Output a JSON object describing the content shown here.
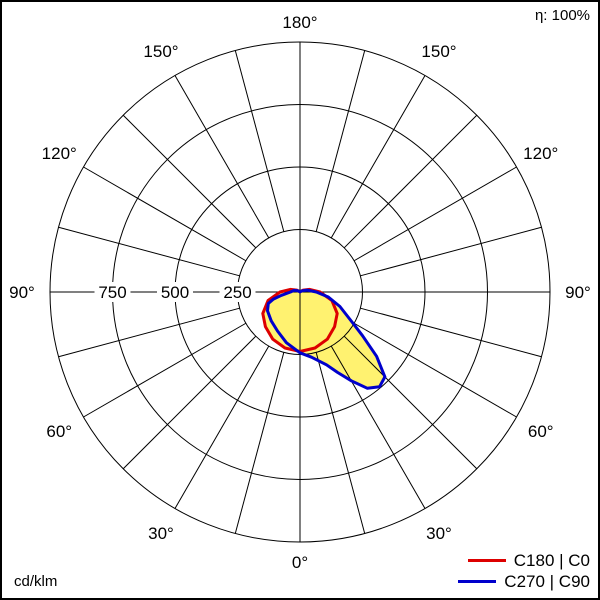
{
  "efficiency_label": "η: 100%",
  "unit_label": "cd/klm",
  "chart_data": {
    "type": "polar",
    "angle_unit": "deg",
    "angle_labels": [
      {
        "angle": 0,
        "text": "0°"
      },
      {
        "angle": 30,
        "text": "30°"
      },
      {
        "angle": 60,
        "text": "60°"
      },
      {
        "angle": 90,
        "text": "90°"
      },
      {
        "angle": 120,
        "text": "120°"
      },
      {
        "angle": 150,
        "text": "150°"
      },
      {
        "angle": 180,
        "text": "180°"
      }
    ],
    "radial_ticks": [
      250,
      500,
      750
    ],
    "radial_labels": [
      "250",
      "500",
      "750"
    ],
    "rmax": 1000,
    "grid": true,
    "legend_position": "bottom-right",
    "fill_color": "#fff270",
    "series": [
      {
        "name": "C180 | C0",
        "color": "#dd0000",
        "points": [
          [
            0,
            238
          ],
          [
            15,
            232
          ],
          [
            30,
            218
          ],
          [
            45,
            196
          ],
          [
            60,
            172
          ],
          [
            75,
            132
          ],
          [
            90,
            80
          ],
          [
            105,
            40
          ],
          [
            120,
            15
          ],
          [
            135,
            3
          ],
          [
            180,
            0
          ],
          [
            -135,
            3
          ],
          [
            -120,
            15
          ],
          [
            -105,
            40
          ],
          [
            -90,
            80
          ],
          [
            -75,
            132
          ],
          [
            -60,
            172
          ],
          [
            -45,
            196
          ],
          [
            -30,
            218
          ],
          [
            -15,
            232
          ],
          [
            0,
            238
          ]
        ]
      },
      {
        "name": "C270 | C90",
        "color": "#0000cc",
        "points": [
          [
            -60,
            150
          ],
          [
            -45,
            163
          ],
          [
            -30,
            180
          ],
          [
            -15,
            210
          ],
          [
            0,
            243
          ],
          [
            10,
            265
          ],
          [
            20,
            310
          ],
          [
            25,
            355
          ],
          [
            30,
            410
          ],
          [
            35,
            470
          ],
          [
            40,
            495
          ],
          [
            45,
            480
          ],
          [
            50,
            400
          ],
          [
            55,
            305
          ],
          [
            60,
            240
          ],
          [
            70,
            170
          ],
          [
            80,
            115
          ],
          [
            90,
            65
          ],
          [
            105,
            30
          ],
          [
            120,
            10
          ],
          [
            135,
            2
          ],
          [
            180,
            0
          ],
          [
            -135,
            2
          ],
          [
            -120,
            10
          ],
          [
            -105,
            25
          ],
          [
            -90,
            38
          ],
          [
            -80,
            75
          ],
          [
            -75,
            110
          ],
          [
            -70,
            135
          ],
          [
            -60,
            150
          ]
        ]
      }
    ]
  }
}
